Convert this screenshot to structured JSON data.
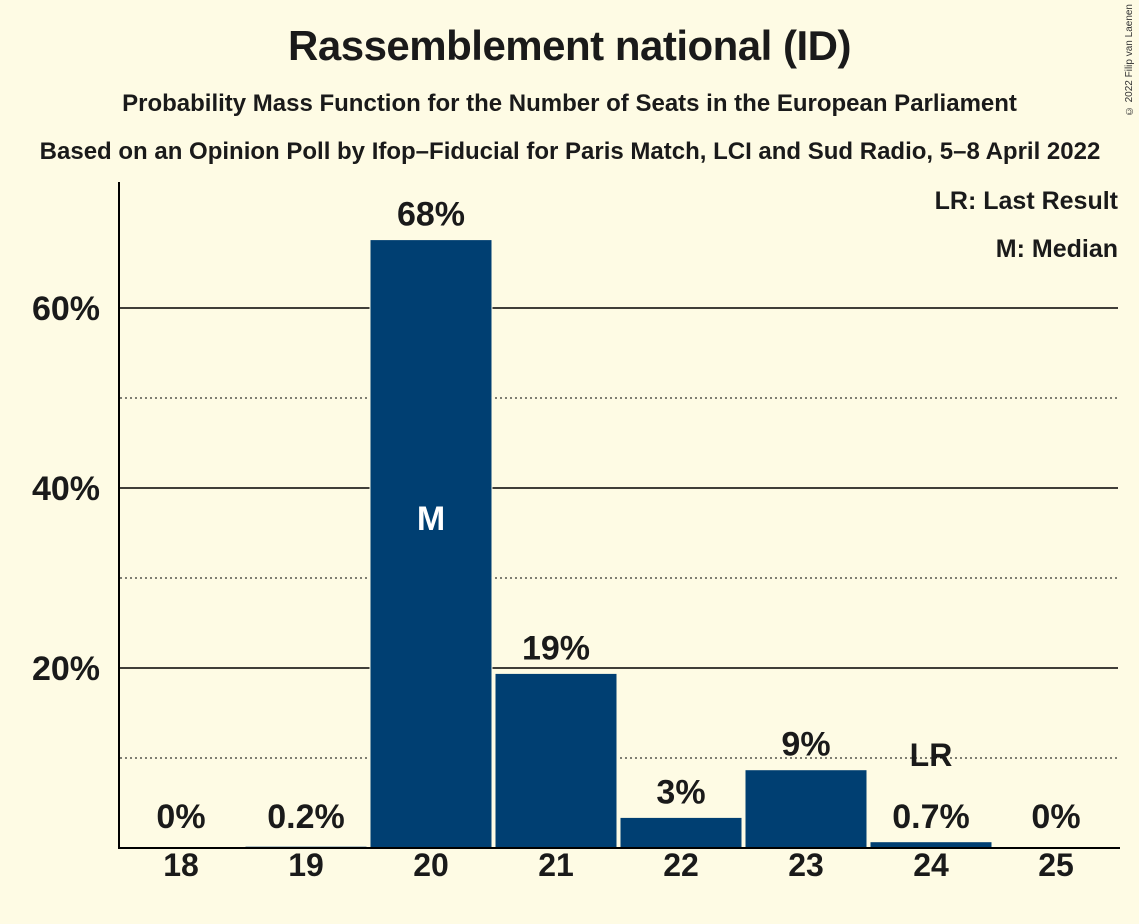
{
  "title": "Rassemblement national (ID)",
  "subtitle": "Probability Mass Function for the Number of Seats in the European Parliament",
  "subtitle2": "Based on an Opinion Poll by Ifop–Fiducial for Paris Match, LCI and Sud Radio, 5–8 April 2022",
  "copyright": "© 2022 Filip van Laenen",
  "legend": {
    "last_result": "LR: Last Result",
    "median": "M: Median"
  },
  "colors": {
    "bar": "#003f72",
    "background": "#fefbe4"
  },
  "chart_data": {
    "type": "bar",
    "categories": [
      "18",
      "19",
      "20",
      "21",
      "22",
      "23",
      "24",
      "25"
    ],
    "values": [
      0,
      0.2,
      67.6,
      19.4,
      3.4,
      8.7,
      0.7,
      0
    ],
    "data_labels": [
      "0%",
      "0.2%",
      "68%",
      "19%",
      "3%",
      "9%",
      "0.7%",
      "0%"
    ],
    "median_category": "20",
    "median_label": "M",
    "last_result_category": "24",
    "last_result_label": "LR",
    "ylim": [
      0,
      74
    ],
    "yticks": [
      20,
      40,
      60
    ],
    "ytick_labels": [
      "20%",
      "40%",
      "60%"
    ],
    "minor_gridlines": [
      10,
      30,
      50
    ],
    "xlabel": "",
    "ylabel": "",
    "legend_placement": "top-right"
  }
}
